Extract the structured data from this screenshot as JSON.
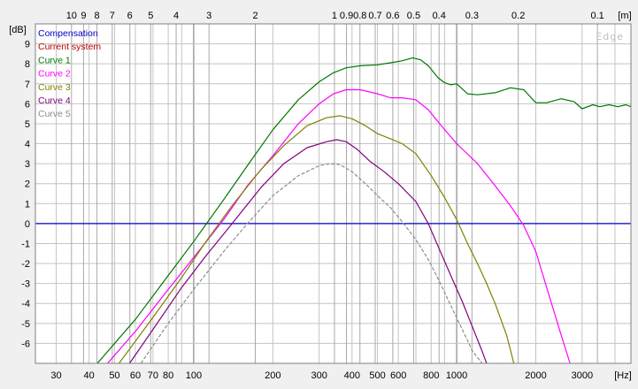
{
  "chart_data": {
    "type": "line",
    "brand": "Edge",
    "x_scale": "log",
    "xlim": [
      25,
      4600
    ],
    "ylim": [
      -7,
      10
    ],
    "x_unit_label": "[Hz]",
    "y_unit_label": "[dB]",
    "top_unit_label": "[m]",
    "grid": true,
    "legend_position": "top-left",
    "x_ticks": [
      "30",
      "40",
      "50",
      "60",
      "70",
      "80",
      "100",
      "200",
      "300",
      "400",
      "500",
      "600",
      "800",
      "1000",
      "2000",
      "3000"
    ],
    "x_tick_values": [
      30,
      40,
      50,
      60,
      70,
      80,
      100,
      200,
      300,
      400,
      500,
      600,
      800,
      1000,
      2000,
      3000
    ],
    "top_ticks": [
      "10",
      "9",
      "8",
      "7",
      "6",
      "5",
      "4",
      "3",
      "2",
      "1",
      "0.9",
      "0.8",
      "0.7",
      "0.6",
      "0.5",
      "0.4",
      "0.3",
      "0.2",
      "0.1"
    ],
    "top_tick_values": [
      10,
      9,
      8,
      7,
      6,
      5,
      4,
      3,
      2,
      1,
      0.9,
      0.8,
      0.7,
      0.6,
      0.5,
      0.4,
      0.3,
      0.2,
      0.1
    ],
    "y_ticks": [
      "9",
      "8",
      "7",
      "6",
      "5",
      "4",
      "3",
      "2",
      "1",
      "0",
      "-1",
      "-2",
      "-3",
      "-4",
      "-5",
      "-6"
    ],
    "y_tick_values": [
      9,
      8,
      7,
      6,
      5,
      4,
      3,
      2,
      1,
      0,
      -1,
      -2,
      -3,
      -4,
      -5,
      -6
    ],
    "series": [
      {
        "name": "Compensation",
        "color": "#0000c8",
        "style": "solid",
        "x": [
          25,
          4600
        ],
        "y": [
          0,
          0
        ]
      },
      {
        "name": "Current system",
        "color": "#c00000",
        "style": "solid",
        "x": [],
        "y": []
      },
      {
        "name": "Curve 1",
        "color": "#007800",
        "style": "solid",
        "x": [
          43,
          60,
          80,
          100,
          130,
          160,
          200,
          250,
          300,
          340,
          380,
          430,
          500,
          560,
          620,
          680,
          730,
          780,
          850,
          900,
          950,
          1000,
          1100,
          1200,
          1400,
          1600,
          1800,
          2000,
          2200,
          2500,
          2800,
          3000,
          3300,
          3500,
          3800,
          4100,
          4400,
          4600
        ],
        "y": [
          -7,
          -4.8,
          -2.6,
          -0.9,
          1.2,
          2.9,
          4.7,
          6.2,
          7.1,
          7.55,
          7.8,
          7.9,
          7.95,
          8.05,
          8.15,
          8.3,
          8.2,
          7.9,
          7.3,
          7.05,
          6.95,
          7.0,
          6.5,
          6.45,
          6.55,
          6.8,
          6.7,
          6.05,
          6.05,
          6.25,
          6.1,
          5.75,
          5.95,
          5.85,
          5.95,
          5.85,
          5.95,
          5.85
        ]
      },
      {
        "name": "Curve 2",
        "color": "#ff00ff",
        "style": "solid",
        "x": [
          47,
          60,
          80,
          100,
          130,
          160,
          200,
          250,
          300,
          340,
          380,
          430,
          500,
          560,
          620,
          700,
          780,
          850,
          900,
          1000,
          1200,
          1400,
          1600,
          1800,
          2000,
          2200,
          2500,
          2700
        ],
        "y": [
          -7,
          -5.4,
          -3.3,
          -1.7,
          0.2,
          1.9,
          3.4,
          5.0,
          6.0,
          6.5,
          6.7,
          6.7,
          6.5,
          6.3,
          6.3,
          6.2,
          5.7,
          5.1,
          4.7,
          4.0,
          3.0,
          1.9,
          0.9,
          -0.1,
          -1.4,
          -3.2,
          -5.6,
          -7.0
        ]
      },
      {
        "name": "Curve 3",
        "color": "#808000",
        "style": "solid",
        "x": [
          52,
          70,
          90,
          110,
          140,
          180,
          220,
          270,
          320,
          360,
          400,
          450,
          500,
          560,
          620,
          700,
          800,
          900,
          1000,
          1100,
          1200,
          1300,
          1400,
          1550,
          1650
        ],
        "y": [
          -7,
          -4.7,
          -2.7,
          -1.0,
          0.9,
          2.7,
          3.9,
          4.9,
          5.3,
          5.4,
          5.25,
          4.9,
          4.5,
          4.25,
          4.0,
          3.5,
          2.4,
          1.3,
          0.2,
          -1.0,
          -2.0,
          -3.0,
          -4.0,
          -5.6,
          -7.0
        ]
      },
      {
        "name": "Curve 4",
        "color": "#800080",
        "style": "solid",
        "x": [
          57,
          70,
          90,
          110,
          140,
          180,
          220,
          270,
          320,
          350,
          380,
          420,
          470,
          530,
          600,
          700,
          780,
          860,
          950,
          1050,
          1150,
          1250,
          1300
        ],
        "y": [
          -7,
          -5.3,
          -3.2,
          -1.7,
          0.0,
          1.8,
          3.0,
          3.8,
          4.1,
          4.2,
          4.1,
          3.7,
          3.1,
          2.6,
          2.0,
          1.1,
          0.0,
          -1.3,
          -2.6,
          -3.9,
          -5.2,
          -6.4,
          -7.0
        ]
      },
      {
        "name": "Curve 5",
        "color": "#8c8c8c",
        "style": "dashed",
        "x": [
          63,
          80,
          100,
          130,
          160,
          200,
          250,
          300,
          330,
          360,
          400,
          450,
          500,
          560,
          620,
          700,
          780,
          860,
          950,
          1050,
          1150,
          1250
        ],
        "y": [
          -7,
          -5.0,
          -3.3,
          -1.4,
          0.0,
          1.4,
          2.4,
          2.9,
          3.0,
          2.95,
          2.6,
          2.0,
          1.4,
          0.8,
          0.1,
          -0.8,
          -1.8,
          -2.9,
          -4.1,
          -5.3,
          -6.4,
          -7.0
        ]
      }
    ]
  }
}
